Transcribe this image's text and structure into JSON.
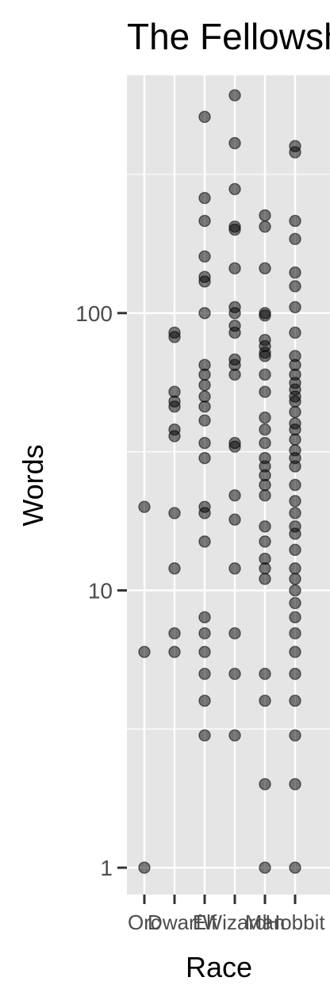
{
  "chart_data": {
    "type": "scatter",
    "title": "The Fellowship Of The Ring",
    "xlabel": "Race",
    "ylabel": "Words",
    "yscale": "log",
    "ylim": [
      0.8,
      720
    ],
    "grid": true,
    "panel_background": "#e5e5e5",
    "grid_color": "#ffffff",
    "point_color": "#000000",
    "point_alpha": 0.5,
    "categories": [
      "Orc",
      "Dwarf",
      "Elf",
      "Wizard",
      "Man",
      "Hobbit"
    ],
    "y_ticks": [
      {
        "value": 1,
        "label": "1"
      },
      {
        "value": 10,
        "label": "10"
      },
      {
        "value": 100,
        "label": "100"
      }
    ],
    "points": {
      "Orc": [
        20,
        6,
        1
      ],
      "Dwarf": [
        85,
        82,
        52,
        48,
        46,
        38,
        36,
        19,
        12,
        7,
        6
      ],
      "Elf": [
        510,
        260,
        215,
        160,
        135,
        130,
        100,
        65,
        60,
        55,
        50,
        46,
        41,
        34,
        30,
        20,
        19,
        15,
        8,
        7,
        6,
        5,
        4,
        3
      ],
      "Wizard": [
        610,
        410,
        280,
        205,
        200,
        145,
        105,
        100,
        90,
        85,
        68,
        65,
        60,
        34,
        33,
        22,
        18,
        12,
        7,
        5,
        3
      ],
      "Man": [
        225,
        205,
        145,
        100,
        98,
        80,
        76,
        72,
        70,
        60,
        52,
        42,
        38,
        34,
        30,
        28,
        26,
        24,
        22,
        17,
        15,
        13,
        12,
        11,
        5,
        4,
        2,
        1
      ],
      "Hobbit": [
        400,
        380,
        215,
        185,
        140,
        125,
        105,
        85,
        70,
        65,
        60,
        56,
        53,
        50,
        48,
        44,
        40,
        38,
        35,
        32,
        30,
        28,
        24,
        21,
        19,
        17,
        16,
        14,
        12,
        11,
        10,
        9,
        8,
        7,
        6,
        5,
        4,
        3,
        2,
        1
      ]
    }
  }
}
